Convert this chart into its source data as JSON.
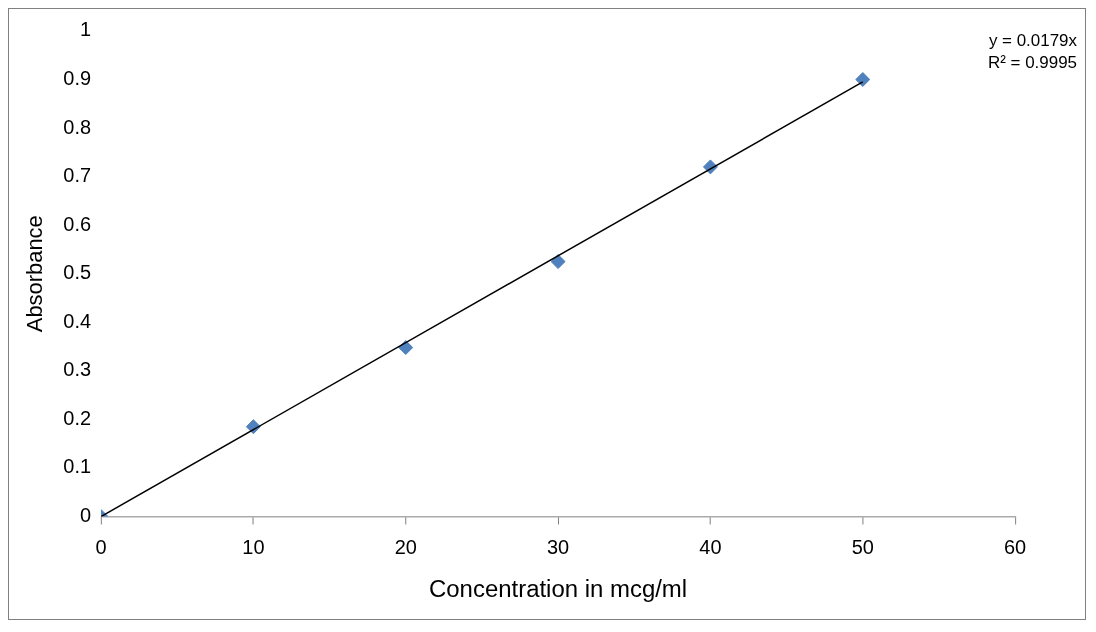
{
  "chart_data": {
    "type": "scatter",
    "xlabel": "Concentration in mcg/ml",
    "ylabel": "Absorbance",
    "xlim": [
      0,
      60
    ],
    "ylim": [
      0,
      1
    ],
    "xticks": [
      0,
      10,
      20,
      30,
      40,
      50,
      60
    ],
    "yticks": [
      0,
      0.1,
      0.2,
      0.3,
      0.4,
      0.5,
      0.6,
      0.7,
      0.8,
      0.9,
      1
    ],
    "grid": false,
    "legend": false,
    "marker": "diamond",
    "annotations": [
      "y = 0.0179x",
      "R² = 0.9995"
    ],
    "series": [
      {
        "type": "scatter",
        "color": "#4f81bd",
        "x": [
          0,
          10,
          20,
          30,
          40,
          50
        ],
        "values": [
          0,
          0.185,
          0.348,
          0.525,
          0.72,
          0.9
        ]
      },
      {
        "type": "line",
        "color": "#000000",
        "x": [
          0,
          50
        ],
        "values": [
          0,
          0.895
        ],
        "marker": "none",
        "line_style": "solid"
      }
    ]
  }
}
